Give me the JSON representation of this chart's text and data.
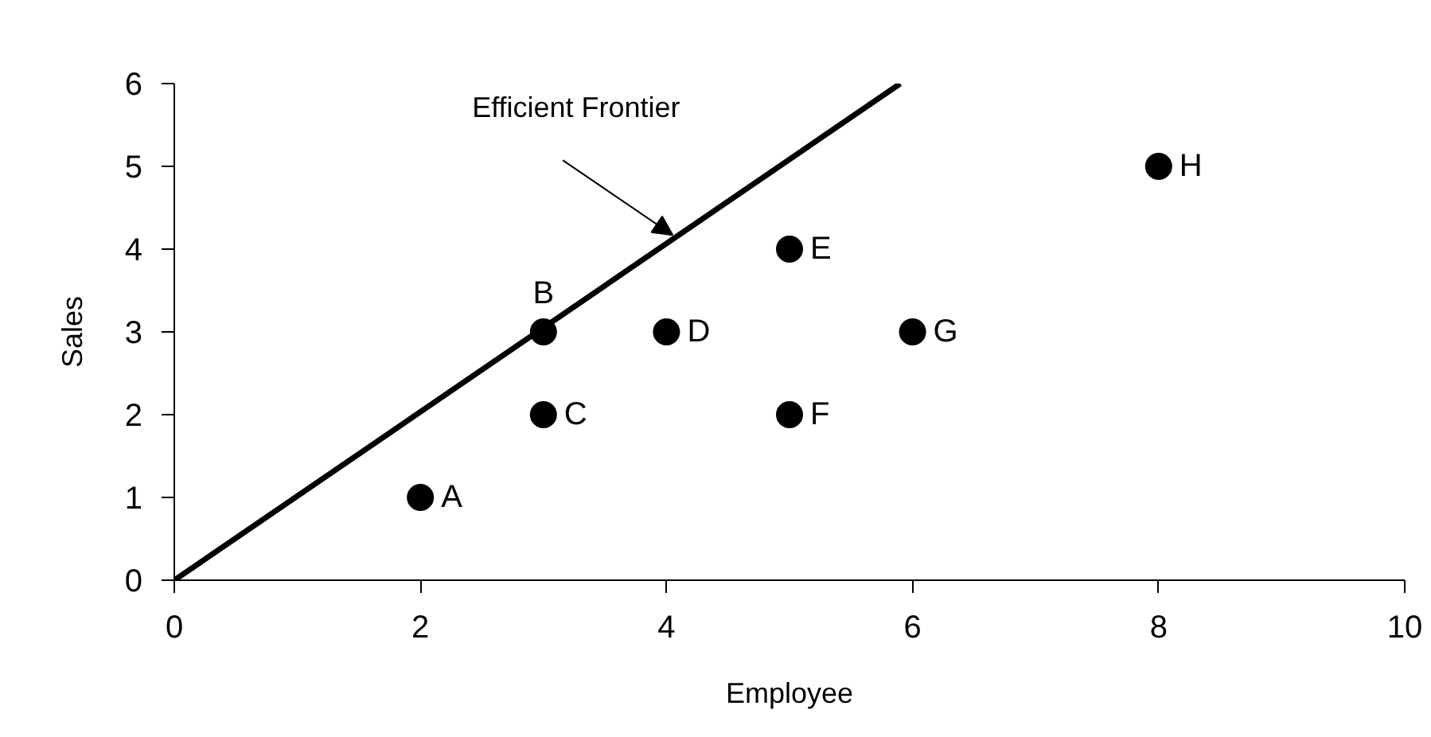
{
  "chart_data": {
    "type": "scatter",
    "xlabel": "Employee",
    "ylabel": "Sales",
    "xlim": [
      0,
      10
    ],
    "xticks": [
      0,
      2,
      4,
      6,
      8,
      10
    ],
    "ylim": [
      0,
      6
    ],
    "yticks": [
      0,
      1,
      2,
      3,
      4,
      5,
      6
    ],
    "grid": false,
    "series": [
      {
        "color": "#000000",
        "marker": "circle",
        "x": [
          2,
          3,
          3,
          4,
          5,
          5,
          6,
          8
        ],
        "values": [
          1,
          3,
          2,
          3,
          4,
          2,
          3,
          5
        ]
      },
      {
        "type": "line",
        "marker": "none",
        "color": "#000000",
        "x": [
          0,
          5.9
        ],
        "values": [
          0,
          6.0
        ],
        "line_style": "solid"
      }
    ],
    "annotations": [
      {
        "text": "A",
        "x": 2,
        "y": 1
      },
      {
        "text": "B",
        "x": 3,
        "y": 3
      },
      {
        "text": "C",
        "x": 3,
        "y": 2
      },
      {
        "text": "D",
        "x": 4,
        "y": 3
      },
      {
        "text": "E",
        "x": 5,
        "y": 4
      },
      {
        "text": "F",
        "x": 5,
        "y": 2
      },
      {
        "text": "G",
        "x": 6,
        "y": 3
      },
      {
        "text": "H",
        "x": 8,
        "y": 5
      },
      {
        "text": "Efficient Frontier",
        "x": 4.05,
        "y": 4.17
      }
    ]
  }
}
